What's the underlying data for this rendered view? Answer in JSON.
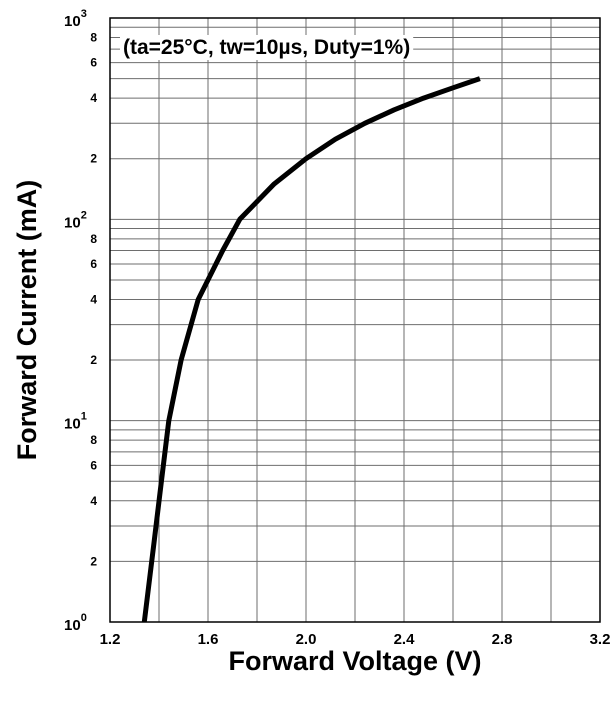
{
  "chart_data": {
    "type": "line",
    "title": "",
    "annotation": "(ta=25°C, tw=10µs, Duty=1%)",
    "xlabel": "Forward Voltage (V)",
    "ylabel": "Forward Current (mA)",
    "xlim": [
      1.2,
      3.2
    ],
    "ylim": [
      1,
      1000
    ],
    "yscale": "log",
    "grid": true,
    "x_ticks": [
      "1.2",
      "1.6",
      "2.0",
      "2.4",
      "2.8",
      "3.2"
    ],
    "y_decade_ticks": [
      {
        "base": "10",
        "exp": "0",
        "value": 1
      },
      {
        "base": "10",
        "exp": "1",
        "value": 10
      },
      {
        "base": "10",
        "exp": "2",
        "value": 100
      },
      {
        "base": "10",
        "exp": "3",
        "value": 1000
      }
    ],
    "y_minor_labels": [
      "2",
      "4",
      "6",
      "8"
    ],
    "color": "#000000",
    "series": [
      {
        "name": "",
        "x": [
          1.34,
          1.38,
          1.41,
          1.44,
          1.49,
          1.56,
          1.66,
          1.73,
          1.87,
          2.0,
          2.12,
          2.24,
          2.36,
          2.48,
          2.6,
          2.71
        ],
        "y": [
          1,
          2.5,
          5,
          10,
          20,
          40,
          70,
          100,
          150,
          200,
          250,
          300,
          350,
          400,
          450,
          500
        ]
      }
    ]
  }
}
